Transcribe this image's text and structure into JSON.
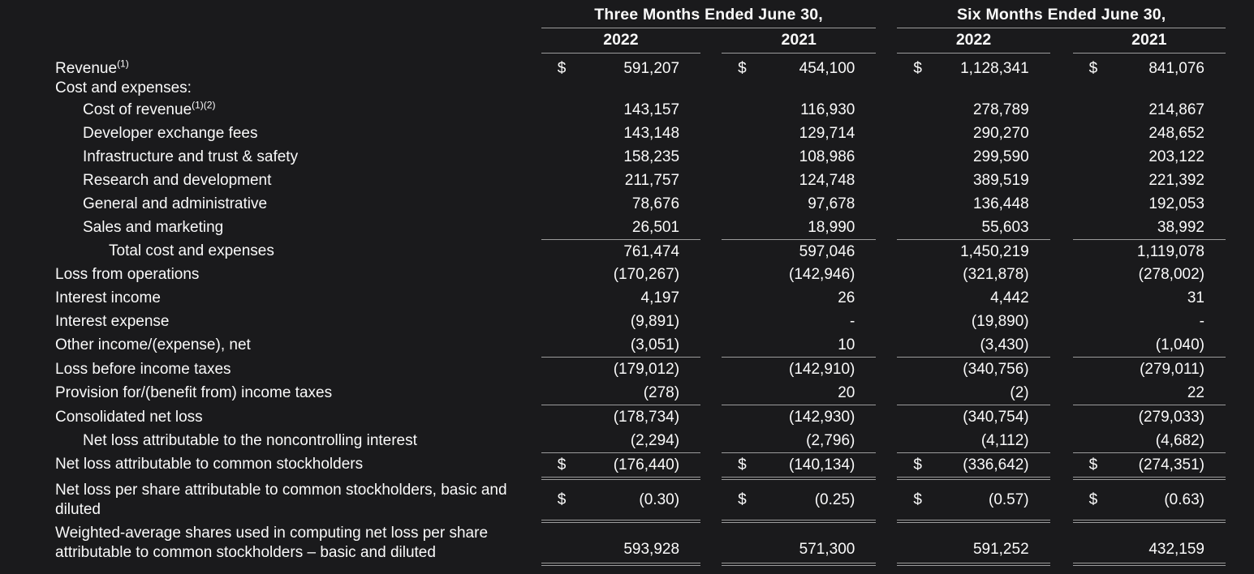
{
  "page": {
    "background_color": "#1a1a1c",
    "text_color": "#fafafa",
    "rule_color": "#9c9c9c"
  },
  "table": {
    "column_groups": [
      {
        "label": "Three Months Ended June 30,",
        "years": [
          "2022",
          "2021"
        ]
      },
      {
        "label": "Six Months Ended June 30,",
        "years": [
          "2022",
          "2021"
        ]
      }
    ],
    "rows": [
      {
        "label": "Revenue",
        "sup": "(1)",
        "indent": 0,
        "compact": true,
        "first": true,
        "values": [
          {
            "cur": "$",
            "val": "591,207"
          },
          {
            "cur": "$",
            "val": "454,100"
          },
          {
            "cur": "$",
            "val": "1,128,341"
          },
          {
            "cur": "$",
            "val": "841,076"
          }
        ]
      },
      {
        "label": "Cost and expenses:",
        "indent": 0,
        "compact": true,
        "values": null
      },
      {
        "label": "Cost of revenue",
        "sup": "(1)(2)",
        "indent": 1,
        "values": [
          {
            "cur": "",
            "val": "143,157"
          },
          {
            "cur": "",
            "val": "116,930"
          },
          {
            "cur": "",
            "val": "278,789"
          },
          {
            "cur": "",
            "val": "214,867"
          }
        ]
      },
      {
        "label": "Developer exchange fees",
        "indent": 1,
        "values": [
          {
            "cur": "",
            "val": "143,148"
          },
          {
            "cur": "",
            "val": "129,714"
          },
          {
            "cur": "",
            "val": "290,270"
          },
          {
            "cur": "",
            "val": "248,652"
          }
        ]
      },
      {
        "label": "Infrastructure and trust & safety",
        "indent": 1,
        "values": [
          {
            "cur": "",
            "val": "158,235"
          },
          {
            "cur": "",
            "val": "108,986"
          },
          {
            "cur": "",
            "val": "299,590"
          },
          {
            "cur": "",
            "val": "203,122"
          }
        ]
      },
      {
        "label": "Research and development",
        "indent": 1,
        "values": [
          {
            "cur": "",
            "val": "211,757"
          },
          {
            "cur": "",
            "val": "124,748"
          },
          {
            "cur": "",
            "val": "389,519"
          },
          {
            "cur": "",
            "val": "221,392"
          }
        ]
      },
      {
        "label": "General and administrative",
        "indent": 1,
        "values": [
          {
            "cur": "",
            "val": "78,676"
          },
          {
            "cur": "",
            "val": "97,678"
          },
          {
            "cur": "",
            "val": "136,448"
          },
          {
            "cur": "",
            "val": "192,053"
          }
        ]
      },
      {
        "label": "Sales and marketing",
        "indent": 1,
        "rule": "single",
        "values": [
          {
            "cur": "",
            "val": "26,501"
          },
          {
            "cur": "",
            "val": "18,990"
          },
          {
            "cur": "",
            "val": "55,603"
          },
          {
            "cur": "",
            "val": "38,992"
          }
        ]
      },
      {
        "label": "Total cost and expenses",
        "indent": 2,
        "values": [
          {
            "cur": "",
            "val": "761,474"
          },
          {
            "cur": "",
            "val": "597,046"
          },
          {
            "cur": "",
            "val": "1,450,219"
          },
          {
            "cur": "",
            "val": "1,119,078"
          }
        ]
      },
      {
        "label": "Loss from operations",
        "indent": 0,
        "values": [
          {
            "cur": "",
            "val": "(170,267)"
          },
          {
            "cur": "",
            "val": "(142,946)"
          },
          {
            "cur": "",
            "val": "(321,878)"
          },
          {
            "cur": "",
            "val": "(278,002)"
          }
        ]
      },
      {
        "label": "Interest income",
        "indent": 0,
        "values": [
          {
            "cur": "",
            "val": "4,197"
          },
          {
            "cur": "",
            "val": "26"
          },
          {
            "cur": "",
            "val": "4,442"
          },
          {
            "cur": "",
            "val": "31"
          }
        ]
      },
      {
        "label": "Interest expense",
        "indent": 0,
        "values": [
          {
            "cur": "",
            "val": "(9,891)"
          },
          {
            "cur": "",
            "val": "-"
          },
          {
            "cur": "",
            "val": "(19,890)"
          },
          {
            "cur": "",
            "val": "-"
          }
        ]
      },
      {
        "label": "Other income/(expense), net",
        "indent": 0,
        "rule": "single",
        "values": [
          {
            "cur": "",
            "val": "(3,051)"
          },
          {
            "cur": "",
            "val": "10"
          },
          {
            "cur": "",
            "val": "(3,430)"
          },
          {
            "cur": "",
            "val": "(1,040)"
          }
        ]
      },
      {
        "label": "Loss before income taxes",
        "indent": 0,
        "values": [
          {
            "cur": "",
            "val": "(179,012)"
          },
          {
            "cur": "",
            "val": "(142,910)"
          },
          {
            "cur": "",
            "val": "(340,756)"
          },
          {
            "cur": "",
            "val": "(279,011)"
          }
        ]
      },
      {
        "label": "Provision for/(benefit from) income taxes",
        "indent": 0,
        "rule": "single",
        "values": [
          {
            "cur": "",
            "val": "(278)"
          },
          {
            "cur": "",
            "val": "20"
          },
          {
            "cur": "",
            "val": "(2)"
          },
          {
            "cur": "",
            "val": "22"
          }
        ]
      },
      {
        "label": "Consolidated net loss",
        "indent": 0,
        "values": [
          {
            "cur": "",
            "val": "(178,734)"
          },
          {
            "cur": "",
            "val": "(142,930)"
          },
          {
            "cur": "",
            "val": "(340,754)"
          },
          {
            "cur": "",
            "val": "(279,033)"
          }
        ]
      },
      {
        "label": "Net loss attributable to the noncontrolling interest",
        "indent": 1,
        "rule": "single",
        "values": [
          {
            "cur": "",
            "val": "(2,294)"
          },
          {
            "cur": "",
            "val": "(2,796)"
          },
          {
            "cur": "",
            "val": "(4,112)"
          },
          {
            "cur": "",
            "val": "(4,682)"
          }
        ]
      },
      {
        "label": "Net loss attributable to common stockholders",
        "indent": 0,
        "rule": "double",
        "values": [
          {
            "cur": "$",
            "val": "(176,440)"
          },
          {
            "cur": "$",
            "val": "(140,134)"
          },
          {
            "cur": "$",
            "val": "(336,642)"
          },
          {
            "cur": "$",
            "val": "(274,351)"
          }
        ]
      },
      {
        "label": "Net loss per share attributable to common stockholders, basic and diluted",
        "indent": 0,
        "rule": "double",
        "valign": "middle",
        "values": [
          {
            "cur": "$",
            "val": "(0.30)"
          },
          {
            "cur": "$",
            "val": "(0.25)"
          },
          {
            "cur": "$",
            "val": "(0.57)"
          },
          {
            "cur": "$",
            "val": "(0.63)"
          }
        ]
      },
      {
        "label": "Weighted-average shares used in computing net loss per share attributable to common stockholders – basic and diluted",
        "indent": 0,
        "rule": "double",
        "valign": "bottom",
        "values": [
          {
            "cur": "",
            "val": "593,928"
          },
          {
            "cur": "",
            "val": "571,300"
          },
          {
            "cur": "",
            "val": "591,252"
          },
          {
            "cur": "",
            "val": "432,159"
          }
        ]
      }
    ]
  }
}
